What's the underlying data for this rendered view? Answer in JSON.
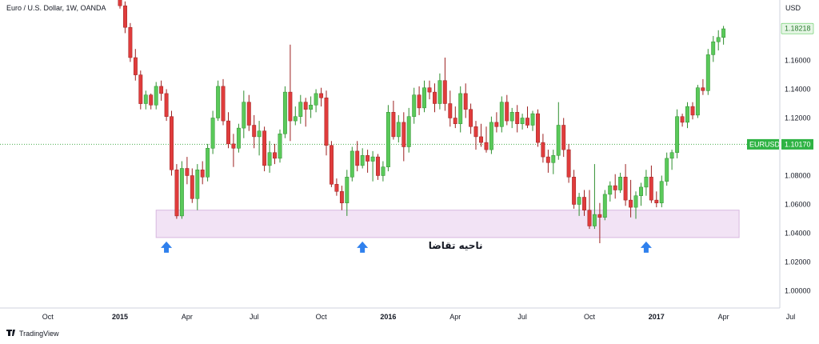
{
  "chart_data": {
    "type": "candlestick",
    "title": "Euro / U.S. Dollar, 1W, OANDA",
    "currency": "USD",
    "brand": "TradingView",
    "price_axis": {
      "ylim": [
        0.988,
        1.202
      ],
      "ticks": [
        "1.00000",
        "1.02000",
        "1.04000",
        "1.06000",
        "1.08000",
        "1.10000",
        "1.12000",
        "1.14000",
        "1.16000",
        "1.18000"
      ],
      "tick_values": [
        1.0,
        1.02,
        1.04,
        1.06,
        1.08,
        1.1,
        1.12,
        1.14,
        1.16,
        1.18
      ]
    },
    "time_axis": {
      "labels": [
        "Oct",
        "2015",
        "Apr",
        "Jul",
        "Oct",
        "2016",
        "Apr",
        "Jul",
        "Oct",
        "2017",
        "Apr",
        "Jul"
      ],
      "bold": [
        false,
        true,
        false,
        false,
        false,
        true,
        false,
        false,
        false,
        true,
        false,
        false
      ],
      "week_index": [
        -14,
        0,
        13,
        26,
        39,
        52,
        65,
        78,
        91,
        104,
        117,
        130
      ]
    },
    "price_tags": [
      {
        "label": "",
        "value": "1.18218",
        "price": 1.18218,
        "style": "last"
      },
      {
        "label": "EURUSD",
        "value": "1.10170",
        "price": 1.1017,
        "style": "ref"
      }
    ],
    "demand_zone": {
      "label": "ناحیه تقاضا",
      "price_from": 1.037,
      "price_to": 1.056,
      "week_from": 7,
      "week_to": 120
    },
    "arrows": [
      {
        "week": 9,
        "name": "arrow-2015"
      },
      {
        "week": 47,
        "name": "arrow-2015-dec"
      },
      {
        "week": 102,
        "name": "arrow-2016-dec"
      }
    ],
    "colors": {
      "up": "#5ac95a",
      "down": "#e03c3c",
      "wick_up": "#2f8f2f",
      "wick_down": "#9c2020",
      "zone_fill": "#f2e3f5",
      "zone_stroke": "#d7b8e0",
      "arrow": "#2f80ed",
      "ref_line": "#4caf50",
      "last_tag_bg": "#e6f6e6",
      "last_tag_text": "#2e7d32",
      "ref_tag_bg": "#2fb344"
    },
    "candles": [
      [
        1.209,
        1.213,
        1.196,
        1.198
      ],
      [
        1.198,
        1.201,
        1.179,
        1.183
      ],
      [
        1.183,
        1.186,
        1.159,
        1.162
      ],
      [
        1.162,
        1.168,
        1.146,
        1.15
      ],
      [
        1.15,
        1.153,
        1.126,
        1.13
      ],
      [
        1.13,
        1.139,
        1.126,
        1.136
      ],
      [
        1.136,
        1.137,
        1.126,
        1.129
      ],
      [
        1.129,
        1.145,
        1.126,
        1.142
      ],
      [
        1.142,
        1.146,
        1.132,
        1.137
      ],
      [
        1.137,
        1.14,
        1.118,
        1.121
      ],
      [
        1.121,
        1.125,
        1.08,
        1.084
      ],
      [
        1.084,
        1.088,
        1.05,
        1.052
      ],
      [
        1.052,
        1.09,
        1.05,
        1.085
      ],
      [
        1.085,
        1.093,
        1.074,
        1.08
      ],
      [
        1.08,
        1.085,
        1.061,
        1.064
      ],
      [
        1.064,
        1.088,
        1.056,
        1.084
      ],
      [
        1.084,
        1.09,
        1.074,
        1.079
      ],
      [
        1.079,
        1.102,
        1.076,
        1.099
      ],
      [
        1.099,
        1.125,
        1.095,
        1.12
      ],
      [
        1.12,
        1.146,
        1.118,
        1.142
      ],
      [
        1.142,
        1.147,
        1.115,
        1.118
      ],
      [
        1.118,
        1.124,
        1.099,
        1.102
      ],
      [
        1.102,
        1.109,
        1.086,
        1.099
      ],
      [
        1.099,
        1.116,
        1.096,
        1.113
      ],
      [
        1.113,
        1.139,
        1.106,
        1.131
      ],
      [
        1.131,
        1.136,
        1.111,
        1.115
      ],
      [
        1.115,
        1.122,
        1.099,
        1.107
      ],
      [
        1.107,
        1.118,
        1.094,
        1.111
      ],
      [
        1.111,
        1.114,
        1.083,
        1.087
      ],
      [
        1.087,
        1.104,
        1.082,
        1.096
      ],
      [
        1.096,
        1.102,
        1.088,
        1.092
      ],
      [
        1.092,
        1.112,
        1.089,
        1.109
      ],
      [
        1.109,
        1.142,
        1.106,
        1.138
      ],
      [
        1.138,
        1.171,
        1.104,
        1.118
      ],
      [
        1.118,
        1.128,
        1.115,
        1.121
      ],
      [
        1.121,
        1.136,
        1.116,
        1.131
      ],
      [
        1.131,
        1.134,
        1.114,
        1.126
      ],
      [
        1.126,
        1.135,
        1.12,
        1.129
      ],
      [
        1.129,
        1.14,
        1.124,
        1.137
      ],
      [
        1.137,
        1.141,
        1.128,
        1.134
      ],
      [
        1.134,
        1.139,
        1.094,
        1.101
      ],
      [
        1.101,
        1.104,
        1.072,
        1.074
      ],
      [
        1.074,
        1.078,
        1.066,
        1.069
      ],
      [
        1.069,
        1.073,
        1.056,
        1.061
      ],
      [
        1.061,
        1.084,
        1.052,
        1.079
      ],
      [
        1.079,
        1.1,
        1.076,
        1.097
      ],
      [
        1.097,
        1.104,
        1.083,
        1.087
      ],
      [
        1.087,
        1.099,
        1.085,
        1.094
      ],
      [
        1.094,
        1.098,
        1.082,
        1.09
      ],
      [
        1.09,
        1.097,
        1.076,
        1.093
      ],
      [
        1.093,
        1.095,
        1.077,
        1.08
      ],
      [
        1.08,
        1.09,
        1.076,
        1.086
      ],
      [
        1.086,
        1.129,
        1.083,
        1.124
      ],
      [
        1.124,
        1.132,
        1.105,
        1.107
      ],
      [
        1.107,
        1.122,
        1.103,
        1.117
      ],
      [
        1.117,
        1.124,
        1.09,
        1.1
      ],
      [
        1.1,
        1.127,
        1.096,
        1.121
      ],
      [
        1.121,
        1.141,
        1.116,
        1.136
      ],
      [
        1.136,
        1.142,
        1.122,
        1.127
      ],
      [
        1.127,
        1.146,
        1.124,
        1.141
      ],
      [
        1.141,
        1.146,
        1.133,
        1.138
      ],
      [
        1.138,
        1.144,
        1.124,
        1.13
      ],
      [
        1.13,
        1.151,
        1.126,
        1.146
      ],
      [
        1.146,
        1.162,
        1.125,
        1.13
      ],
      [
        1.13,
        1.139,
        1.114,
        1.12
      ],
      [
        1.12,
        1.128,
        1.113,
        1.116
      ],
      [
        1.116,
        1.142,
        1.11,
        1.137
      ],
      [
        1.137,
        1.144,
        1.12,
        1.126
      ],
      [
        1.126,
        1.13,
        1.109,
        1.114
      ],
      [
        1.114,
        1.118,
        1.098,
        1.107
      ],
      [
        1.107,
        1.116,
        1.1,
        1.103
      ],
      [
        1.103,
        1.114,
        1.096,
        1.098
      ],
      [
        1.098,
        1.121,
        1.095,
        1.117
      ],
      [
        1.117,
        1.124,
        1.11,
        1.114
      ],
      [
        1.114,
        1.135,
        1.11,
        1.131
      ],
      [
        1.131,
        1.136,
        1.115,
        1.118
      ],
      [
        1.118,
        1.127,
        1.113,
        1.124
      ],
      [
        1.124,
        1.129,
        1.11,
        1.116
      ],
      [
        1.116,
        1.123,
        1.112,
        1.12
      ],
      [
        1.12,
        1.128,
        1.113,
        1.115
      ],
      [
        1.115,
        1.125,
        1.111,
        1.123
      ],
      [
        1.123,
        1.126,
        1.1,
        1.103
      ],
      [
        1.103,
        1.109,
        1.089,
        1.093
      ],
      [
        1.093,
        1.098,
        1.082,
        1.089
      ],
      [
        1.089,
        1.098,
        1.081,
        1.094
      ],
      [
        1.094,
        1.131,
        1.091,
        1.115
      ],
      [
        1.115,
        1.12,
        1.093,
        1.098
      ],
      [
        1.098,
        1.102,
        1.075,
        1.079
      ],
      [
        1.079,
        1.084,
        1.057,
        1.06
      ],
      [
        1.06,
        1.068,
        1.052,
        1.065
      ],
      [
        1.065,
        1.07,
        1.052,
        1.056
      ],
      [
        1.056,
        1.07,
        1.043,
        1.045
      ],
      [
        1.045,
        1.088,
        1.043,
        1.053
      ],
      [
        1.053,
        1.061,
        1.033,
        1.051
      ],
      [
        1.051,
        1.07,
        1.049,
        1.067
      ],
      [
        1.067,
        1.076,
        1.062,
        1.073
      ],
      [
        1.073,
        1.081,
        1.064,
        1.07
      ],
      [
        1.07,
        1.082,
        1.068,
        1.079
      ],
      [
        1.079,
        1.088,
        1.059,
        1.063
      ],
      [
        1.063,
        1.077,
        1.051,
        1.058
      ],
      [
        1.058,
        1.069,
        1.05,
        1.066
      ],
      [
        1.066,
        1.075,
        1.059,
        1.072
      ],
      [
        1.072,
        1.084,
        1.066,
        1.079
      ],
      [
        1.079,
        1.087,
        1.061,
        1.063
      ],
      [
        1.063,
        1.069,
        1.058,
        1.061
      ],
      [
        1.061,
        1.08,
        1.058,
        1.076
      ],
      [
        1.076,
        1.096,
        1.073,
        1.092
      ],
      [
        1.092,
        1.098,
        1.084,
        1.096
      ],
      [
        1.096,
        1.126,
        1.092,
        1.121
      ],
      [
        1.121,
        1.123,
        1.114,
        1.117
      ],
      [
        1.117,
        1.131,
        1.113,
        1.128
      ],
      [
        1.128,
        1.131,
        1.119,
        1.122
      ],
      [
        1.122,
        1.143,
        1.12,
        1.141
      ],
      [
        1.141,
        1.147,
        1.136,
        1.139
      ],
      [
        1.139,
        1.168,
        1.136,
        1.164
      ],
      [
        1.164,
        1.177,
        1.159,
        1.173
      ],
      [
        1.173,
        1.181,
        1.167,
        1.176
      ],
      [
        1.176,
        1.184,
        1.171,
        1.182
      ]
    ]
  }
}
